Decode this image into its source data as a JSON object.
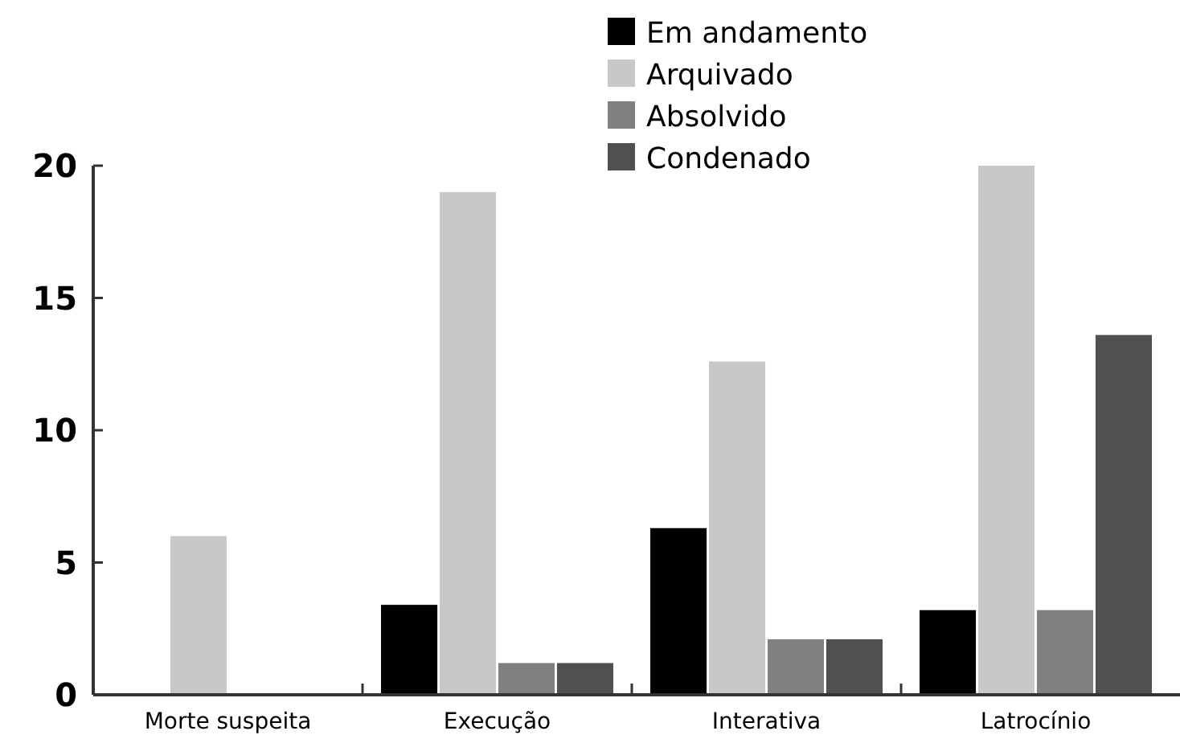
{
  "chart_data": {
    "type": "bar",
    "categories": [
      "Morte suspeita",
      "Execução",
      "Interativa",
      "Latrocínio"
    ],
    "series": [
      {
        "name": "Em andamento",
        "color": "#000000",
        "values": [
          0,
          3.4,
          6.3,
          3.2
        ]
      },
      {
        "name": "Arquivado",
        "color": "#c8c8c8",
        "values": [
          6,
          19,
          12.6,
          20
        ]
      },
      {
        "name": "Absolvido",
        "color": "#808080",
        "values": [
          0,
          1.2,
          2.1,
          3.2
        ]
      },
      {
        "name": "Condenado",
        "color": "#505050",
        "values": [
          0,
          1.2,
          2.1,
          13.6
        ]
      }
    ],
    "ylim": [
      0,
      20
    ],
    "yticks": [
      0,
      5,
      10,
      15,
      20
    ],
    "grid": false,
    "legend": "top right"
  }
}
